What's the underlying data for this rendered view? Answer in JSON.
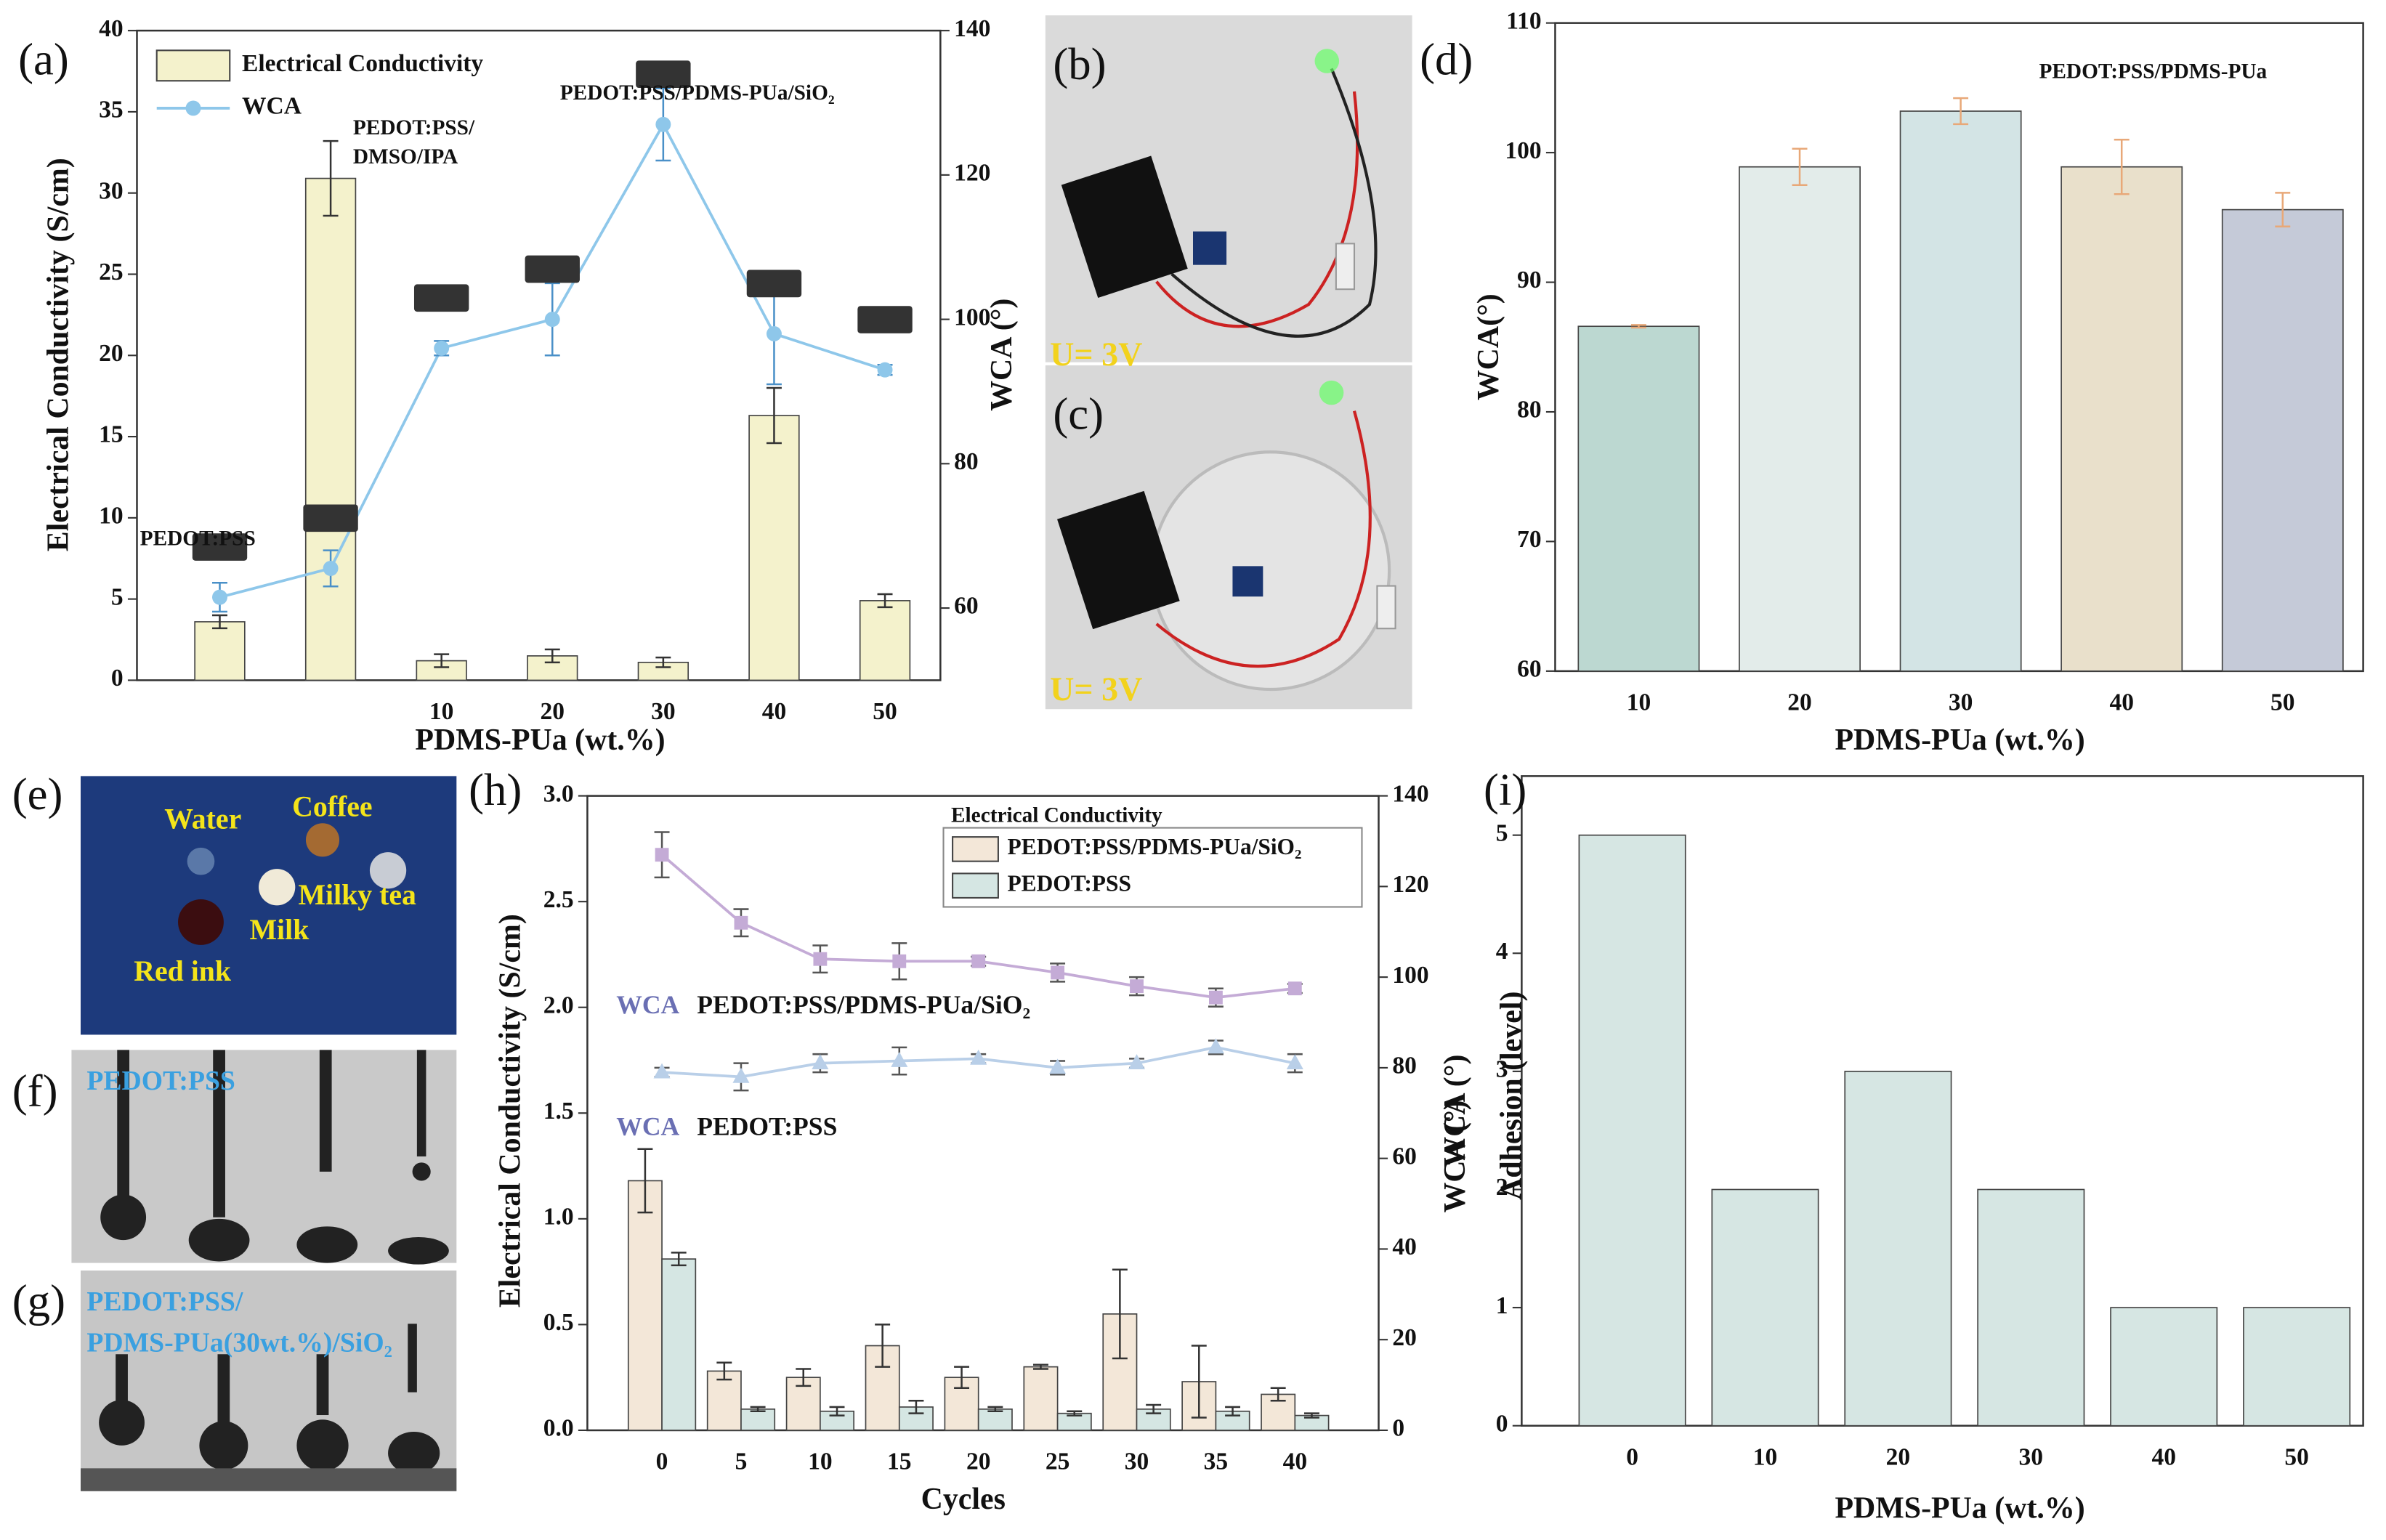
{
  "chart_data": [
    {
      "type": "combo",
      "label": "(a)",
      "xlabel": "PDMS-PUa (wt.%)",
      "ylabel": "Electrical Conductivity (S/cm)",
      "y2label": "WCA (°)",
      "categories": [
        null,
        null,
        "10",
        "20",
        "30",
        "40",
        "50"
      ],
      "ylim": [
        0,
        40
      ],
      "yticks": [
        0,
        5,
        10,
        15,
        20,
        25,
        30,
        35,
        40
      ],
      "y2lim": [
        50,
        140
      ],
      "y2ticks": [
        60,
        80,
        100,
        120,
        140
      ],
      "legend": "upper left",
      "series": [
        {
          "name": "Electrical Conductivity",
          "kind": "bar",
          "color": "#f4f2cc",
          "values": [
            3.6,
            30.9,
            1.2,
            1.5,
            1.1,
            16.3,
            4.9
          ],
          "errors": [
            0.4,
            2.3,
            0.4,
            0.4,
            0.3,
            1.7,
            0.4
          ]
        },
        {
          "name": "WCA",
          "kind": "line",
          "axis": "y2",
          "marker": "circle",
          "color": "#8ec7ea",
          "values": [
            61.5,
            65.5,
            96,
            100,
            127,
            98,
            93
          ],
          "errors": [
            2,
            2.5,
            1,
            5,
            5,
            7,
            0.7
          ]
        }
      ],
      "annotations": [
        "PEDOT:PSS",
        "PEDOT:PSS/",
        "DMSO/IPA",
        "PEDOT:PSS/PDMS-PUa/SiO₂"
      ]
    },
    {
      "type": "bar",
      "label": "(d)",
      "xlabel": "PDMS-PUa (wt.%)",
      "ylabel": "WCA(°)",
      "categories": [
        "10",
        "20",
        "30",
        "40",
        "50"
      ],
      "values": [
        86.6,
        98.9,
        103.2,
        98.9,
        95.6
      ],
      "errors": [
        0.1,
        1.4,
        1.0,
        2.1,
        1.3
      ],
      "colors": [
        "#bcd8d1",
        "#e3ecea",
        "#d3e4e5",
        "#e9e0cb",
        "#c5cad8"
      ],
      "ylim": [
        60,
        110
      ],
      "yticks": [
        60,
        70,
        80,
        90,
        100,
        110
      ],
      "annotations": [
        "PEDOT:PSS/PDMS-PUa"
      ]
    },
    {
      "type": "combo",
      "label": "(h)",
      "xlabel": "Cycles",
      "ylabel": "Electrical Conductivity (S/cm)",
      "y2label": "WCA (°)",
      "categories": [
        "0",
        "5",
        "10",
        "15",
        "20",
        "25",
        "30",
        "35",
        "40"
      ],
      "ylim": [
        0,
        3
      ],
      "yticks": [
        {
          "value": 0,
          "label": "0.0"
        },
        0.5,
        {
          "value": 1,
          "label": "1.0"
        },
        1.5,
        {
          "value": 2,
          "label": "2.0"
        },
        2.5,
        {
          "value": 3,
          "label": "3.0"
        }
      ],
      "y2lim": [
        0,
        140
      ],
      "y2ticks": [
        0,
        20,
        40,
        60,
        80,
        100,
        120,
        140
      ],
      "legend": "upper right",
      "legend_title": "Electrical Conductivity",
      "series": [
        {
          "name": "PEDOT:PSS/PDMS-PUa/SiO₂",
          "kind": "bar",
          "color": "#f3e7d8",
          "values": [
            1.18,
            0.28,
            0.25,
            0.4,
            0.25,
            0.3,
            0.55,
            0.23,
            0.17
          ],
          "errors": [
            0.15,
            0.04,
            0.04,
            0.1,
            0.05,
            0.01,
            0.21,
            0.17,
            0.03
          ]
        },
        {
          "name": "PEDOT:PSS",
          "kind": "bar",
          "color": "#d5e6e3",
          "values": [
            0.81,
            0.1,
            0.09,
            0.11,
            0.1,
            0.08,
            0.1,
            0.09,
            0.07
          ],
          "errors": [
            0.03,
            0.01,
            0.02,
            0.03,
            0.01,
            0.01,
            0.02,
            0.02,
            0.01
          ]
        },
        {
          "kind": "line",
          "axis": "y2",
          "marker": "square",
          "color": "#c4abd6",
          "values": [
            127,
            112,
            104,
            103.5,
            103.5,
            101,
            98,
            95.5,
            97.5
          ],
          "errors": [
            5,
            3,
            3,
            4,
            1,
            2,
            2,
            2,
            1
          ]
        },
        {
          "kind": "line",
          "axis": "y2",
          "marker": "triangle",
          "color": "#b9cfe8",
          "values": [
            79,
            78,
            81,
            81.5,
            82,
            80,
            81,
            84.5,
            81
          ],
          "errors": [
            1,
            3,
            2,
            3,
            1,
            1.5,
            1,
            1.5,
            2
          ]
        }
      ],
      "annotations": [
        "WCA",
        "PEDOT:PSS/PDMS-PUa/SiO₂",
        "WCA",
        "PEDOT:PSS"
      ]
    },
    {
      "type": "bar",
      "label": "(i)",
      "xlabel": "PDMS-PUa (wt.%)",
      "ylabel": "Adhesion (level)",
      "categories": [
        "0",
        "10",
        "20",
        "30",
        "40",
        "50"
      ],
      "values": [
        5,
        2,
        3,
        2,
        1,
        1
      ],
      "color": "#d6e6e3",
      "ylim": [
        0,
        5.5
      ],
      "yticks": [
        0,
        1,
        2,
        3,
        4,
        5
      ],
      "annotations": [
        "WCA (°)"
      ]
    }
  ],
  "photos": [
    {
      "label": "(b)",
      "texts": [
        "U= 3V"
      ]
    },
    {
      "label": "(c)",
      "texts": [
        "U= 3V"
      ]
    },
    {
      "label": "(e)",
      "texts": [
        "Water",
        "Coffee",
        "Milky tea",
        "Milk",
        "Red ink"
      ]
    },
    {
      "label": "(f)",
      "texts": [
        "PEDOT:PSS"
      ]
    },
    {
      "label": "(g)",
      "texts": [
        "PEDOT:PSS/",
        "PDMS-PUa(30wt.%)/SiO₂"
      ]
    }
  ]
}
